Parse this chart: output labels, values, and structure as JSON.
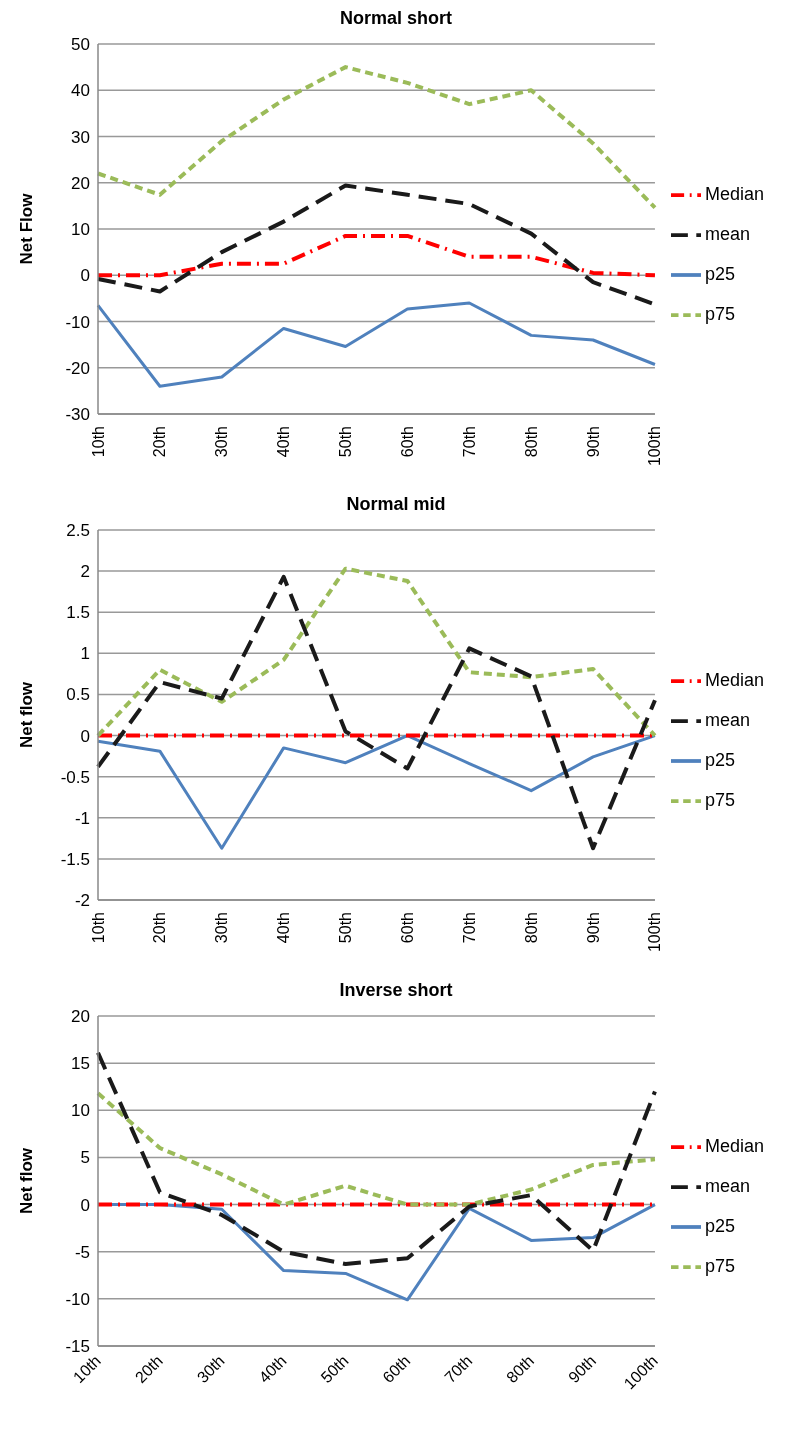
{
  "chart_data": [
    {
      "type": "line",
      "title": "Normal short",
      "ylabel": "Net Flow",
      "categories": [
        "10th",
        "20th",
        "30th",
        "40th",
        "50th",
        "60th",
        "70th",
        "80th",
        "90th",
        "100th"
      ],
      "ylim": [
        -30,
        50
      ],
      "yticks": [
        -30,
        -20,
        -10,
        0,
        10,
        20,
        30,
        40,
        50
      ],
      "grid": "y",
      "legend": "right",
      "marker": "none",
      "series": [
        {
          "name": "p25",
          "color": "#4f81bd",
          "line_style": "solid",
          "values": [
            -6.5,
            -24,
            -22,
            -11.5,
            -15.4,
            -7.3,
            -6,
            -13,
            -14,
            -19.3
          ]
        },
        {
          "name": "Median",
          "color": "#ff0000",
          "line_style": "dashed",
          "values": [
            0,
            0,
            2.5,
            2.5,
            8.5,
            8.5,
            4,
            4,
            0.5,
            0
          ]
        },
        {
          "name": "p75",
          "color": "#9bbb59",
          "line_style": "dashed",
          "values": [
            22,
            17.4,
            29,
            38,
            45,
            41.6,
            37,
            40,
            28.5,
            14.6
          ]
        },
        {
          "name": "mean",
          "color": "#1a1a1a",
          "line_style": "dashed",
          "values": [
            -0.8,
            -3.5,
            5,
            11.6,
            19.4,
            17.4,
            15.4,
            9,
            -1.5,
            -6.3
          ]
        }
      ]
    },
    {
      "type": "line",
      "title": "Normal mid",
      "ylabel": "Net flow",
      "categories": [
        "10th",
        "20th",
        "30th",
        "40th",
        "50th",
        "60th",
        "70th",
        "80th",
        "90th",
        "100th"
      ],
      "ylim": [
        -2,
        2.5
      ],
      "yticks": [
        -2,
        -1.5,
        -1,
        -0.5,
        0,
        0.5,
        1,
        1.5,
        2,
        2.5
      ],
      "grid": "y",
      "legend": "right",
      "marker": "none",
      "series": [
        {
          "name": "p25",
          "color": "#4f81bd",
          "line_style": "solid",
          "values": [
            -0.07,
            -0.19,
            -1.37,
            -0.15,
            -0.33,
            0,
            -0.34,
            -0.67,
            -0.26,
            0
          ]
        },
        {
          "name": "Median",
          "color": "#ff0000",
          "line_style": "dashed",
          "values": [
            0,
            0,
            0,
            0,
            0,
            0,
            0,
            0,
            0,
            0
          ]
        },
        {
          "name": "p75",
          "color": "#9bbb59",
          "line_style": "dashed",
          "values": [
            0,
            0.8,
            0.41,
            0.92,
            2.03,
            1.88,
            0.77,
            0.71,
            0.81,
            0
          ]
        },
        {
          "name": "mean",
          "color": "#1a1a1a",
          "line_style": "dashed",
          "values": [
            -0.38,
            0.65,
            0.45,
            1.93,
            0.05,
            -0.4,
            1.06,
            0.72,
            -1.37,
            0.43
          ]
        }
      ]
    },
    {
      "type": "line",
      "title": "Inverse short",
      "ylabel": "Net flow",
      "categories": [
        "10th",
        "20th",
        "30th",
        "40th",
        "50th",
        "60th",
        "70th",
        "80th",
        "90th",
        "100th"
      ],
      "ylim": [
        -15,
        20
      ],
      "yticks": [
        -15,
        -10,
        -5,
        0,
        5,
        10,
        15,
        20
      ],
      "grid": "y",
      "legend": "right",
      "marker": "none",
      "series": [
        {
          "name": "p25",
          "color": "#4f81bd",
          "line_style": "solid",
          "values": [
            0,
            0,
            -0.5,
            -7,
            -7.3,
            -10.1,
            -0.4,
            -3.8,
            -3.5,
            0
          ]
        },
        {
          "name": "Median",
          "color": "#ff0000",
          "line_style": "dashed",
          "values": [
            0,
            0,
            0,
            0,
            0,
            0,
            0,
            0,
            0,
            0
          ]
        },
        {
          "name": "p75",
          "color": "#9bbb59",
          "line_style": "dashed",
          "values": [
            11.8,
            6,
            3.2,
            0,
            2,
            0,
            0,
            1.6,
            4.2,
            4.8
          ]
        },
        {
          "name": "mean",
          "color": "#1a1a1a",
          "line_style": "dashed",
          "values": [
            16.1,
            1.3,
            -1.1,
            -5,
            -6.3,
            -5.7,
            -0.2,
            1,
            -4.9,
            12
          ]
        }
      ]
    }
  ]
}
